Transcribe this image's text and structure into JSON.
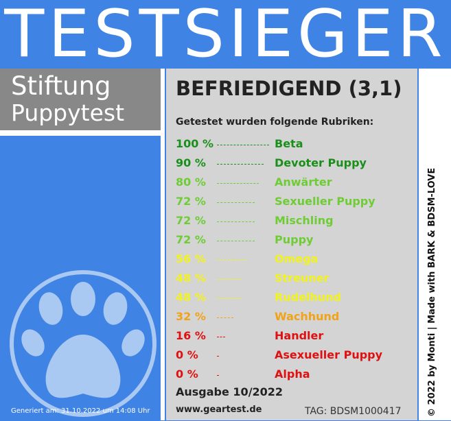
{
  "header": {
    "title": "TESTSIEGER"
  },
  "brand": {
    "line1": "Stiftung",
    "line2": "Puppytest"
  },
  "result": {
    "rating": "BEFRIEDIGEND (3,1)",
    "intro": "Getestet wurden folgende Rubriken:",
    "categories": [
      {
        "percent": "100 %",
        "label": "Beta",
        "value": 100,
        "color": "#1a8f1a"
      },
      {
        "percent": "90 %",
        "label": "Devoter Puppy",
        "value": 90,
        "color": "#1a8f1a"
      },
      {
        "percent": "80 %",
        "label": "Anwärter",
        "value": 80,
        "color": "#6ecc34"
      },
      {
        "percent": "72 %",
        "label": "Sexueller Puppy",
        "value": 72,
        "color": "#6ecc34"
      },
      {
        "percent": "72 %",
        "label": "Mischling",
        "value": 72,
        "color": "#6ecc34"
      },
      {
        "percent": "72 %",
        "label": "Puppy",
        "value": 72,
        "color": "#6ecc34"
      },
      {
        "percent": "56 %",
        "label": "Omega",
        "value": 56,
        "color": "#f2f21c"
      },
      {
        "percent": "48 %",
        "label": "Streuner",
        "value": 48,
        "color": "#f2f21c"
      },
      {
        "percent": "48 %",
        "label": "Rudelhund",
        "value": 48,
        "color": "#f2f21c"
      },
      {
        "percent": "32 %",
        "label": "Wachhund",
        "value": 32,
        "color": "#f2a215"
      },
      {
        "percent": "16 %",
        "label": "Handler",
        "value": 16,
        "color": "#e01010"
      },
      {
        "percent": "0 %",
        "label": "Asexueller Puppy",
        "value": 0,
        "color": "#e01010"
      },
      {
        "percent": "0 %",
        "label": "Alpha",
        "value": 0,
        "color": "#e01010"
      }
    ],
    "issue": "Ausgabe 10/2022",
    "website": "www.geartest.de",
    "tag": "TAG: BDSM1000417"
  },
  "footer": {
    "generated": "Generiert am: 31.10.2022 um 14:08 Uhr",
    "copyright": "© 2022 by Monti | Made with BARK & BDSM-LOVE"
  },
  "icons": {
    "logo": "paw-icon"
  }
}
